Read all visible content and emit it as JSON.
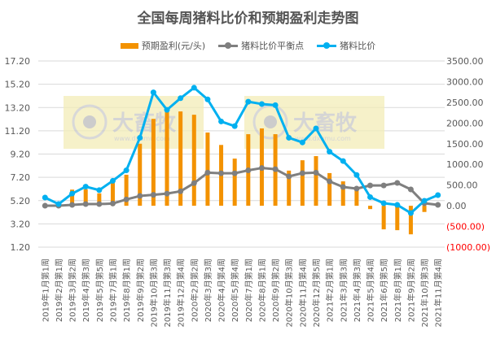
{
  "chart_data": {
    "type": "bar+line",
    "title": "全国每周猪料比价和预期盈利走势图",
    "categories": [
      "2019年1月第1周",
      "2019年2月第1周",
      "2019年3月第2周",
      "2019年4月第3周",
      "2019年5月第5周",
      "2019年7月第1周",
      "2019年8月第1周",
      "2019年9月第2周",
      "2019年10月第3周",
      "2019年11月第3周",
      "2019年12月第4周",
      "2020年2月第2周",
      "2020年3月第3周",
      "2020年4月第4周",
      "2020年5月第4周",
      "2020年7月第1周",
      "2020年8月第1周",
      "2020年9月第2周",
      "2020年10月第3周",
      "2020年11月第4周",
      "2020年12月第5周",
      "2021年2月第1周",
      "2021年3月第3周",
      "2021年4月第3周",
      "2021年5月第4周",
      "2021年6月第5周",
      "2021年8月第1周",
      "2021年9月第2周",
      "2021年10月第3周",
      "2021年11月第4周"
    ],
    "series": [
      {
        "name": "预期盈利(元/头)",
        "type": "bar",
        "axis": "right",
        "color": "#F39200",
        "values": [
          50,
          0,
          390,
          400,
          300,
          550,
          750,
          1500,
          2100,
          2280,
          2280,
          2200,
          1770,
          1470,
          1140,
          1730,
          1870,
          1730,
          850,
          1100,
          1200,
          790,
          590,
          390,
          -80,
          -570,
          -590,
          -690,
          -150,
          50
        ]
      },
      {
        "name": "猪料比价平衡点",
        "type": "line",
        "axis": "left",
        "color": "#7F7F7F",
        "values": [
          4.76,
          4.76,
          4.83,
          4.9,
          4.9,
          4.95,
          5.3,
          5.6,
          5.7,
          5.8,
          6.0,
          6.7,
          7.6,
          7.55,
          7.55,
          7.8,
          8.0,
          7.9,
          7.28,
          7.56,
          7.6,
          6.85,
          6.37,
          6.23,
          6.5,
          6.5,
          6.72,
          6.16,
          4.97,
          4.83
        ]
      },
      {
        "name": "猪料比价",
        "type": "line",
        "axis": "left",
        "color": "#00B0F0",
        "values": [
          5.46,
          4.9,
          5.8,
          6.4,
          6.1,
          6.9,
          7.8,
          10.6,
          14.5,
          13.0,
          14.0,
          14.9,
          13.9,
          12.0,
          11.6,
          13.7,
          13.5,
          13.4,
          10.6,
          10.2,
          11.4,
          9.4,
          8.6,
          7.4,
          5.5,
          4.97,
          4.83,
          4.13,
          5.18,
          5.67
        ]
      }
    ],
    "left_axis": {
      "range": [
        1.2,
        17.2
      ],
      "ticks": [
        "17.20",
        "15.20",
        "13.20",
        "11.20",
        "9.20",
        "7.20",
        "5.20",
        "3.20",
        "1.20"
      ]
    },
    "right_axis": {
      "range": [
        -1000,
        3500
      ],
      "ticks": [
        "3500.00",
        "3000.00",
        "2500.00",
        "2000.00",
        "1500.00",
        "1000.00",
        "500.00",
        "0.00",
        "(500.00)",
        "(1000.00)"
      ],
      "negative_color": "#FF0000"
    },
    "grid": true,
    "legend": "top"
  },
  "watermark": {
    "brand": "大畜牧",
    "url": "www.dxumu.com"
  }
}
